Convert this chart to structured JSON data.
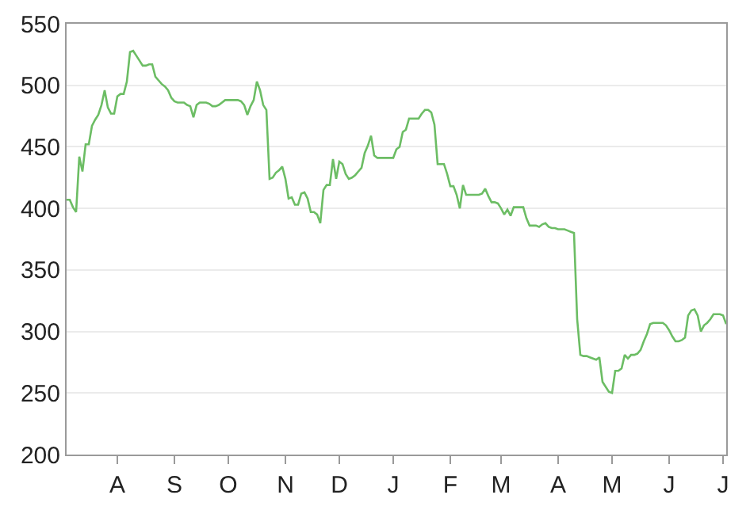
{
  "chart_data": {
    "type": "line",
    "categories": [
      null,
      null,
      null,
      null,
      null,
      null,
      null,
      null,
      null,
      null,
      null,
      null,
      null,
      null,
      null,
      null,
      "A",
      null,
      null,
      null,
      null,
      null,
      null,
      null,
      null,
      null,
      null,
      null,
      null,
      null,
      null,
      null,
      null,
      null,
      "S",
      null,
      null,
      null,
      null,
      null,
      null,
      null,
      null,
      null,
      null,
      null,
      null,
      null,
      null,
      null,
      null,
      "O",
      null,
      null,
      null,
      null,
      null,
      null,
      null,
      null,
      null,
      null,
      null,
      null,
      null,
      null,
      null,
      null,
      null,
      "N",
      null,
      null,
      null,
      null,
      null,
      null,
      null,
      null,
      null,
      null,
      null,
      null,
      null,
      null,
      null,
      null,
      "D",
      null,
      null,
      null,
      null,
      null,
      null,
      null,
      null,
      null,
      null,
      null,
      null,
      null,
      null,
      null,
      null,
      "J",
      null,
      null,
      null,
      null,
      null,
      null,
      null,
      null,
      null,
      null,
      null,
      null,
      null,
      null,
      null,
      null,
      null,
      "F",
      null,
      null,
      null,
      null,
      null,
      null,
      null,
      null,
      null,
      null,
      null,
      null,
      null,
      null,
      null,
      "M",
      null,
      null,
      null,
      null,
      null,
      null,
      null,
      null,
      null,
      null,
      null,
      null,
      null,
      null,
      null,
      null,
      null,
      "A",
      null,
      null,
      null,
      null,
      null,
      null,
      null,
      null,
      null,
      null,
      null,
      null,
      null,
      null,
      null,
      null,
      "M",
      null,
      null,
      null,
      null,
      null,
      null,
      null,
      null,
      null,
      null,
      null,
      null,
      null,
      null,
      null,
      null,
      null,
      "J",
      null,
      null,
      null,
      null,
      null,
      null,
      null,
      null,
      null,
      null,
      null,
      null,
      null,
      null,
      null,
      null,
      "J",
      null
    ],
    "series": [
      {
        "color": "#6cbd64",
        "values": [
          407,
          407,
          401,
          397,
          442,
          430,
          452,
          452,
          467,
          472,
          476,
          484,
          496,
          482,
          477,
          477,
          491,
          493,
          493,
          503,
          527,
          528,
          524,
          520,
          516,
          516,
          517,
          517,
          507,
          504,
          501,
          499,
          496,
          490,
          487,
          486,
          486,
          486,
          484,
          483,
          474,
          484,
          486,
          486,
          486,
          485,
          483,
          483,
          484,
          486,
          488,
          488,
          488,
          488,
          488,
          487,
          484,
          476,
          483,
          488,
          503,
          496,
          484,
          480,
          424,
          425,
          429,
          431,
          434,
          424,
          408,
          409,
          403,
          403,
          412,
          413,
          408,
          397,
          397,
          395,
          388,
          415,
          419,
          419,
          440,
          424,
          438,
          436,
          428,
          424,
          425,
          427,
          430,
          433,
          445,
          451,
          459,
          443,
          441,
          441,
          441,
          441,
          441,
          441,
          448,
          450,
          462,
          464,
          473,
          473,
          473,
          473,
          477,
          480,
          480,
          478,
          468,
          436,
          436,
          436,
          428,
          418,
          418,
          411,
          400,
          419,
          411,
          411,
          411,
          411,
          411,
          412,
          416,
          410,
          405,
          405,
          404,
          400,
          395,
          399,
          394,
          401,
          401,
          401,
          401,
          392,
          386,
          386,
          386,
          385,
          387,
          388,
          385,
          384,
          384,
          383,
          383,
          383,
          382,
          381,
          380,
          310,
          281,
          280,
          280,
          279,
          278,
          277,
          279,
          259,
          255,
          251,
          250,
          268,
          268,
          270,
          281,
          278,
          281,
          281,
          282,
          285,
          292,
          298,
          306,
          307,
          307,
          307,
          307,
          305,
          301,
          296,
          292,
          292,
          293,
          295,
          313,
          317,
          318,
          313,
          300,
          305,
          307,
          310,
          314,
          314,
          314,
          313,
          306
        ]
      }
    ],
    "ylim": [
      200,
      550
    ],
    "yticks": [
      200,
      250,
      300,
      350,
      400,
      450,
      500,
      550
    ],
    "grid": "y"
  }
}
